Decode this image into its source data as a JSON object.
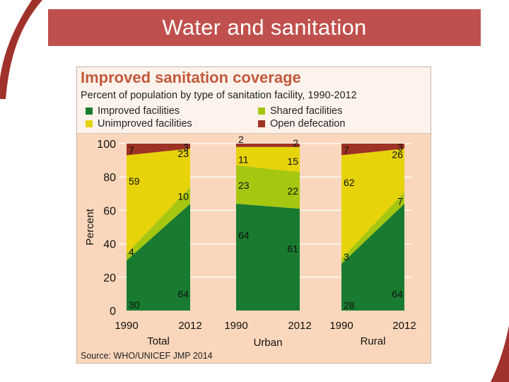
{
  "slide": {
    "title": "Water and sanitation"
  },
  "chart_data": {
    "type": "area",
    "title": "Improved sanitation coverage",
    "subtitle": "Percent of population by type of sanitation facility, 1990-2012",
    "ylabel": "Percent",
    "ylim": [
      0,
      100
    ],
    "yticks": [
      0,
      20,
      40,
      60,
      80,
      100
    ],
    "source": "Source:  WHO/UNICEF JMP 2014",
    "legend": [
      {
        "name": "Improved facilities",
        "color": "#197b30"
      },
      {
        "name": "Shared facilities",
        "color": "#a6c710"
      },
      {
        "name": "Unimproved facilities",
        "color": "#e6d30a"
      },
      {
        "name": "Open defecation",
        "color": "#9e3224"
      }
    ],
    "panels": [
      {
        "name": "Total",
        "x": [
          "1990",
          "2012"
        ],
        "series": [
          {
            "name": "Improved facilities",
            "values": [
              30,
              64
            ]
          },
          {
            "name": "Shared facilities",
            "values": [
              4,
              10
            ]
          },
          {
            "name": "Unimproved facilities",
            "values": [
              59,
              23
            ]
          },
          {
            "name": "Open defecation",
            "values": [
              7,
              3
            ]
          }
        ]
      },
      {
        "name": "Urban",
        "x": [
          "1990",
          "2012"
        ],
        "series": [
          {
            "name": "Improved facilities",
            "values": [
              64,
              61
            ]
          },
          {
            "name": "Shared facilities",
            "values": [
              23,
              22
            ]
          },
          {
            "name": "Unimproved facilities",
            "values": [
              11,
              15
            ]
          },
          {
            "name": "Open defecation",
            "values": [
              2,
              2
            ]
          }
        ]
      },
      {
        "name": "Rural",
        "x": [
          "1990",
          "2012"
        ],
        "series": [
          {
            "name": "Improved facilities",
            "values": [
              28,
              64
            ]
          },
          {
            "name": "Shared facilities",
            "values": [
              3,
              7
            ]
          },
          {
            "name": "Unimproved facilities",
            "values": [
              62,
              26
            ]
          },
          {
            "name": "Open defecation",
            "values": [
              7,
              3
            ]
          }
        ]
      }
    ]
  }
}
